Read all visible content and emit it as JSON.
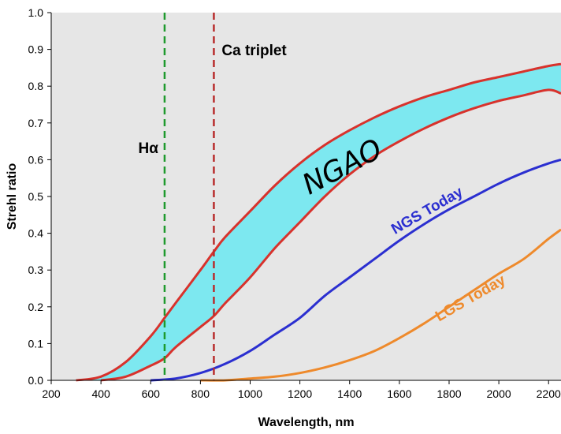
{
  "chart_data": {
    "type": "line",
    "title": "",
    "xlabel": "Wavelength, nm",
    "ylabel": "Strehl ratio",
    "xlim": [
      200,
      2250
    ],
    "ylim": [
      0,
      1.0
    ],
    "xticks": [
      200,
      400,
      600,
      800,
      1000,
      1200,
      1400,
      1600,
      1800,
      2000,
      2200
    ],
    "yticks": [
      "0.0",
      "0.1",
      "0.2",
      "0.3",
      "0.4",
      "0.5",
      "0.6",
      "0.7",
      "0.8",
      "0.9",
      "1.0"
    ],
    "grid": false,
    "background": "#e6e6e6",
    "band": {
      "label": "NGAO",
      "fill": "#7de8f0",
      "edge_color": "#d8322c",
      "upper": {
        "x": [
          300,
          400,
          500,
          600,
          656,
          700,
          800,
          854,
          900,
          1000,
          1100,
          1200,
          1300,
          1400,
          1500,
          1600,
          1700,
          1800,
          1900,
          2000,
          2100,
          2200,
          2250
        ],
        "y": [
          0.0,
          0.01,
          0.05,
          0.12,
          0.17,
          0.21,
          0.3,
          0.35,
          0.39,
          0.46,
          0.53,
          0.59,
          0.64,
          0.68,
          0.715,
          0.745,
          0.77,
          0.79,
          0.81,
          0.825,
          0.84,
          0.855,
          0.86
        ]
      },
      "lower": {
        "x": [
          400,
          500,
          600,
          656,
          700,
          800,
          854,
          900,
          1000,
          1100,
          1200,
          1300,
          1400,
          1500,
          1600,
          1700,
          1800,
          1900,
          2000,
          2100,
          2200,
          2250
        ],
        "y": [
          0.0,
          0.01,
          0.04,
          0.06,
          0.09,
          0.145,
          0.175,
          0.21,
          0.28,
          0.36,
          0.43,
          0.5,
          0.56,
          0.61,
          0.65,
          0.685,
          0.715,
          0.74,
          0.76,
          0.775,
          0.79,
          0.78
        ]
      }
    },
    "series": [
      {
        "name": "NGS Today",
        "color": "#2b2fd0",
        "x": [
          600,
          700,
          800,
          900,
          1000,
          1100,
          1200,
          1300,
          1400,
          1500,
          1600,
          1700,
          1800,
          1900,
          2000,
          2100,
          2200,
          2250
        ],
        "y": [
          0.0,
          0.005,
          0.02,
          0.045,
          0.08,
          0.125,
          0.17,
          0.23,
          0.28,
          0.33,
          0.38,
          0.425,
          0.465,
          0.5,
          0.535,
          0.565,
          0.59,
          0.6
        ]
      },
      {
        "name": "LGS Today",
        "color": "#ee8a2c",
        "x": [
          800,
          900,
          1000,
          1100,
          1200,
          1300,
          1400,
          1500,
          1600,
          1700,
          1800,
          1900,
          2000,
          2100,
          2200,
          2250
        ],
        "y": [
          0.0,
          0.0,
          0.005,
          0.01,
          0.02,
          0.035,
          0.055,
          0.08,
          0.115,
          0.155,
          0.2,
          0.245,
          0.29,
          0.33,
          0.385,
          0.41
        ]
      }
    ],
    "vlines": [
      {
        "x": 656,
        "label": "Hα",
        "color": "#1e9a2e"
      },
      {
        "x": 854,
        "label": "Ca triplet",
        "color": "#b82d2d"
      }
    ]
  }
}
